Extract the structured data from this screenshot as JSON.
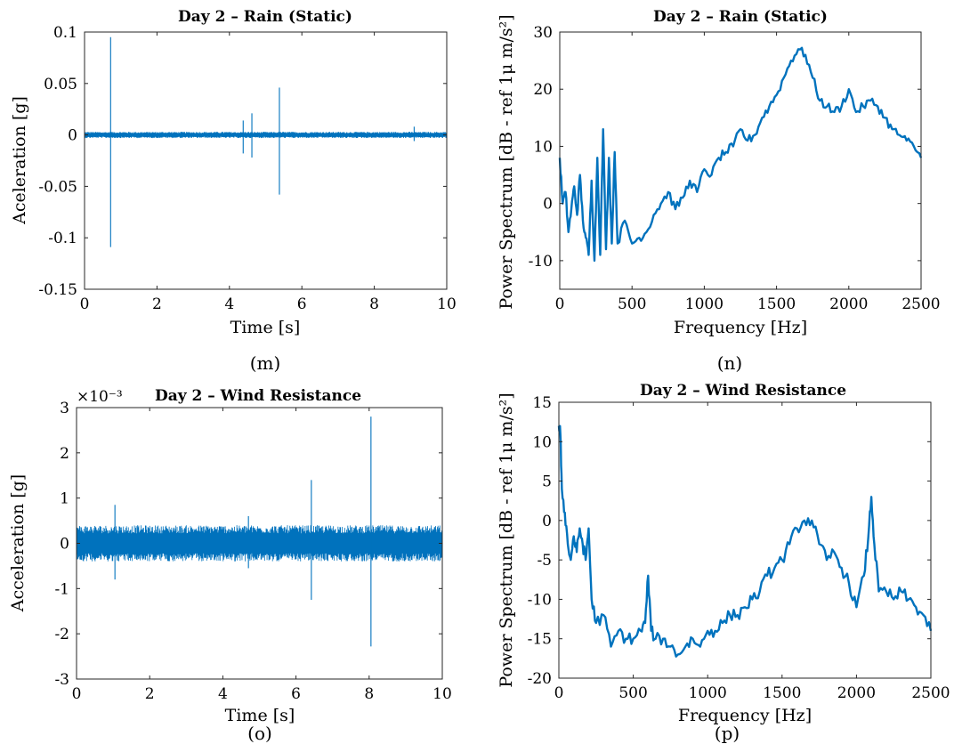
{
  "chart_data": [
    {
      "type": "line",
      "panel": "(m)",
      "title": "Day 2 – Rain (Static)",
      "xlabel": "Time [s]",
      "ylabel": "Aceleration [g]",
      "xlim": [
        0,
        10
      ],
      "ylim": [
        -0.15,
        0.1
      ],
      "xticks": [
        "0",
        "2",
        "4",
        "6",
        "8",
        "10"
      ],
      "yticks": [
        "0.1",
        "0.05",
        "0",
        "-0.05",
        "-0.1",
        "-0.15"
      ],
      "xtick_values": [
        0,
        2,
        4,
        6,
        8,
        10
      ],
      "ytick_values": [
        0.1,
        0.05,
        0,
        -0.05,
        -0.1,
        -0.15
      ],
      "grid": false,
      "color": "#0072BD",
      "noise_amplitude": 0.003,
      "spikes": [
        {
          "x": 0.72,
          "max": 0.095,
          "min": -0.109
        },
        {
          "x": 4.38,
          "max": 0.014,
          "min": -0.018
        },
        {
          "x": 4.62,
          "max": 0.021,
          "min": -0.022
        },
        {
          "x": 5.38,
          "max": 0.046,
          "min": -0.058
        },
        {
          "x": 9.1,
          "max": 0.008,
          "min": -0.006
        }
      ]
    },
    {
      "type": "line",
      "panel": "(n)",
      "title": "Day 2 – Rain (Static)",
      "xlabel": "Frequency [Hz]",
      "ylabel": "Power Spectrum [dB - ref 1μ m/s²]",
      "xlim": [
        0,
        2500
      ],
      "ylim": [
        -15,
        30
      ],
      "xticks": [
        "0",
        "500",
        "1000",
        "1500",
        "2000",
        "2500"
      ],
      "yticks": [
        "30",
        "20",
        "10",
        "0",
        "-10"
      ],
      "xtick_values": [
        0,
        500,
        1000,
        1500,
        2000,
        2500
      ],
      "ytick_values": [
        30,
        20,
        10,
        0,
        -10
      ],
      "grid": false,
      "color": "#0072BD",
      "x": [
        0,
        20,
        40,
        60,
        80,
        100,
        120,
        140,
        160,
        180,
        200,
        220,
        240,
        260,
        280,
        300,
        320,
        340,
        360,
        380,
        400,
        450,
        500,
        550,
        600,
        650,
        700,
        750,
        800,
        850,
        900,
        950,
        1000,
        1050,
        1100,
        1150,
        1200,
        1250,
        1300,
        1350,
        1400,
        1450,
        1500,
        1550,
        1600,
        1650,
        1700,
        1750,
        1800,
        1850,
        1900,
        1950,
        2000,
        2050,
        2100,
        2150,
        2200,
        2250,
        2300,
        2350,
        2400,
        2450,
        2500
      ],
      "y": [
        8,
        0,
        2,
        -5,
        -1,
        3,
        -2,
        5,
        -3,
        -6,
        -9,
        4,
        -10,
        8,
        -9,
        13,
        -8,
        8,
        -7,
        9,
        -7,
        -3,
        -7,
        -6,
        -5,
        -2,
        0,
        2,
        -1,
        1,
        4,
        2,
        6,
        5,
        8,
        9,
        10,
        13,
        11,
        12,
        15,
        17,
        19,
        22,
        25,
        27,
        26,
        22,
        18,
        17,
        16,
        17,
        20,
        16,
        17,
        18,
        17,
        15,
        13,
        12,
        11,
        10,
        8
      ]
    },
    {
      "type": "line",
      "panel": "(o)",
      "title": "Day 2 – Wind Resistance",
      "xlabel": "Time [s]",
      "ylabel": "Acceleration [g]",
      "y_multiplier": "×10⁻³",
      "xlim": [
        0,
        10
      ],
      "ylim": [
        -3,
        3
      ],
      "xticks": [
        "0",
        "2",
        "4",
        "6",
        "8",
        "10"
      ],
      "yticks": [
        "3",
        "2",
        "1",
        "0",
        "-1",
        "-2",
        "-3"
      ],
      "xtick_values": [
        0,
        2,
        4,
        6,
        8,
        10
      ],
      "ytick_values": [
        3,
        2,
        1,
        0,
        -1,
        -2,
        -3
      ],
      "grid": false,
      "color": "#0072BD",
      "noise_amplitude": 0.4,
      "spikes": [
        {
          "x": 1.05,
          "max": 0.85,
          "min": -0.8
        },
        {
          "x": 4.7,
          "max": 0.6,
          "min": -0.55
        },
        {
          "x": 6.42,
          "max": 1.4,
          "min": -1.25
        },
        {
          "x": 8.05,
          "max": 2.8,
          "min": -2.28
        }
      ]
    },
    {
      "type": "line",
      "panel": "(p)",
      "title": "Day 2 – Wind Resistance",
      "xlabel": "Frequency [Hz]",
      "ylabel": "Power Spectrum [dB - ref 1μ m/s²]",
      "xlim": [
        0,
        2500
      ],
      "ylim": [
        -20,
        15
      ],
      "xticks": [
        "0",
        "500",
        "1000",
        "1500",
        "2000",
        "2500"
      ],
      "yticks": [
        "15",
        "10",
        "5",
        "0",
        "-5",
        "-10",
        "-15",
        "-20"
      ],
      "xtick_values": [
        0,
        500,
        1000,
        1500,
        2000,
        2500
      ],
      "ytick_values": [
        15,
        10,
        5,
        0,
        -5,
        -10,
        -15,
        -20
      ],
      "grid": false,
      "color": "#0072BD",
      "x": [
        0,
        10,
        20,
        40,
        60,
        80,
        100,
        120,
        140,
        160,
        180,
        200,
        220,
        250,
        300,
        350,
        400,
        450,
        500,
        550,
        580,
        600,
        620,
        650,
        700,
        750,
        800,
        850,
        900,
        950,
        1000,
        1050,
        1100,
        1150,
        1200,
        1250,
        1300,
        1350,
        1400,
        1450,
        1500,
        1550,
        1600,
        1650,
        1700,
        1750,
        1800,
        1850,
        1900,
        1950,
        2000,
        2050,
        2080,
        2100,
        2120,
        2150,
        2200,
        2250,
        2300,
        2350,
        2400,
        2450,
        2500
      ],
      "y": [
        12,
        11,
        4,
        1,
        -3,
        -5,
        -2,
        -4,
        -1,
        -3,
        -5,
        -1,
        -10,
        -13,
        -12,
        -16,
        -14,
        -15,
        -15,
        -14,
        -13,
        -7,
        -14,
        -15,
        -15,
        -16,
        -17,
        -16,
        -15,
        -16,
        -14,
        -14,
        -13,
        -12,
        -12,
        -11,
        -10,
        -9,
        -7,
        -6,
        -5,
        -3,
        -1,
        0,
        0,
        -3,
        -5,
        -4,
        -6,
        -8,
        -11,
        -7,
        -2,
        3,
        -3,
        -9,
        -9,
        -10,
        -9,
        -10,
        -11,
        -12,
        -14
      ]
    }
  ]
}
